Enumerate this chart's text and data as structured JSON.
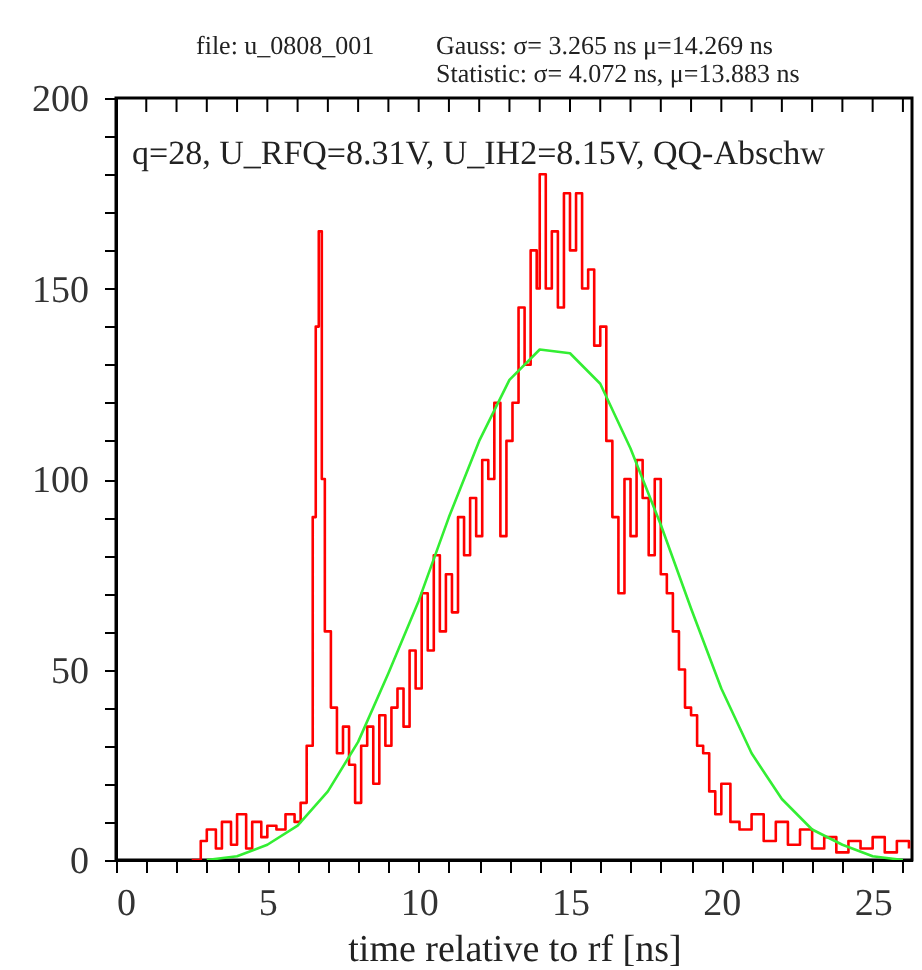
{
  "chart_data": {
    "type": "step",
    "annotations": [
      "file: u_0808_001",
      "Gauss: σ= 3.265 ns  μ=14.269 ns",
      "Statistic: σ= 4.072 ns, μ=13.883 ns",
      "q=28, U_RFQ=8.31V, U_IH2=8.15V, QQ-Abschw"
    ],
    "xlabel": "time relative to rf [ns]",
    "xlim": [
      0,
      26.3
    ],
    "ylim": [
      0,
      200
    ],
    "xticks": [
      0,
      {
        "value": 1,
        "label": null
      },
      {
        "value": 2,
        "label": null
      },
      {
        "value": 3,
        "label": null
      },
      {
        "value": 4,
        "label": null
      },
      5,
      {
        "value": 6,
        "label": null
      },
      {
        "value": 7,
        "label": null
      },
      {
        "value": 8,
        "label": null
      },
      {
        "value": 9,
        "label": null
      },
      10,
      {
        "value": 11,
        "label": null
      },
      {
        "value": 12,
        "label": null
      },
      {
        "value": 13,
        "label": null
      },
      {
        "value": 14,
        "label": null
      },
      15,
      {
        "value": 16,
        "label": null
      },
      {
        "value": 17,
        "label": null
      },
      {
        "value": 18,
        "label": null
      },
      {
        "value": 19,
        "label": null
      },
      20,
      {
        "value": 21,
        "label": null
      },
      {
        "value": 22,
        "label": null
      },
      {
        "value": 23,
        "label": null
      },
      {
        "value": 24,
        "label": null
      },
      25,
      {
        "value": 26,
        "label": null
      }
    ],
    "yticks": [
      0,
      {
        "value": 10,
        "label": null
      },
      {
        "value": 20,
        "label": null
      },
      {
        "value": 30,
        "label": null
      },
      {
        "value": 40,
        "label": null
      },
      50,
      {
        "value": 60,
        "label": null
      },
      {
        "value": 70,
        "label": null
      },
      {
        "value": 80,
        "label": null
      },
      {
        "value": 90,
        "label": null
      },
      100,
      {
        "value": 110,
        "label": null
      },
      {
        "value": 120,
        "label": null
      },
      {
        "value": 130,
        "label": null
      },
      {
        "value": 140,
        "label": null
      },
      150,
      {
        "value": 160,
        "label": null
      },
      {
        "value": 170,
        "label": null
      },
      {
        "value": 180,
        "label": null
      },
      {
        "value": 190,
        "label": null
      },
      200
    ],
    "grid": false,
    "series": [
      {
        "color": "#ff0000",
        "x": [
          2.5,
          2.8,
          3.0,
          3.3,
          3.5,
          3.8,
          4.0,
          4.3,
          4.5,
          4.8,
          5.0,
          5.3,
          5.6,
          5.9,
          6.1,
          6.3,
          6.5,
          6.6,
          6.7,
          6.8,
          6.9,
          7.1,
          7.3,
          7.5,
          7.7,
          7.9,
          8.1,
          8.3,
          8.5,
          8.7,
          8.9,
          9.1,
          9.3,
          9.5,
          9.7,
          9.9,
          10.1,
          10.3,
          10.5,
          10.7,
          10.9,
          11.1,
          11.3,
          11.5,
          11.7,
          11.9,
          12.1,
          12.3,
          12.5,
          12.7,
          12.9,
          13.1,
          13.3,
          13.5,
          13.7,
          13.9,
          14.0,
          14.2,
          14.4,
          14.6,
          14.8,
          15.0,
          15.2,
          15.4,
          15.6,
          15.8,
          16.0,
          16.2,
          16.4,
          16.6,
          16.8,
          17.0,
          17.2,
          17.4,
          17.6,
          17.8,
          18.0,
          18.2,
          18.4,
          18.6,
          18.8,
          19.0,
          19.2,
          19.4,
          19.6,
          19.8,
          20.0,
          20.3,
          20.6,
          21.0,
          21.4,
          21.8,
          22.2,
          22.6,
          23.0,
          23.4,
          23.8,
          24.2,
          24.6,
          25.0,
          25.4,
          25.8,
          26.2
        ],
        "values": [
          0,
          5,
          8,
          3,
          10,
          4,
          12,
          3,
          10,
          6,
          9,
          8,
          12,
          10,
          15,
          30,
          90,
          140,
          165,
          100,
          60,
          40,
          28,
          35,
          25,
          15,
          30,
          35,
          20,
          38,
          30,
          40,
          45,
          35,
          55,
          45,
          70,
          55,
          80,
          60,
          75,
          65,
          90,
          80,
          95,
          85,
          105,
          100,
          120,
          85,
          110,
          120,
          145,
          130,
          160,
          150,
          180,
          150,
          165,
          145,
          175,
          160,
          175,
          150,
          155,
          135,
          140,
          110,
          90,
          70,
          100,
          85,
          105,
          95,
          80,
          100,
          75,
          70,
          60,
          50,
          40,
          38,
          30,
          28,
          18,
          12,
          20,
          10,
          8,
          12,
          5,
          10,
          4,
          8,
          3,
          6,
          2,
          5,
          3,
          6,
          2,
          5,
          3
        ]
      },
      {
        "type": "line",
        "color": "#33ee33",
        "x": [
          3,
          4,
          5,
          6,
          7,
          8,
          9,
          10,
          11,
          12,
          13,
          14,
          15,
          16,
          17,
          18,
          19,
          20,
          21,
          22,
          23,
          24,
          25,
          26
        ],
        "values": [
          0,
          1,
          4,
          9,
          18,
          31,
          49,
          68,
          90,
          110,
          126,
          134,
          133,
          125,
          108,
          88,
          66,
          45,
          28,
          16,
          8,
          4,
          1,
          0
        ]
      }
    ]
  }
}
